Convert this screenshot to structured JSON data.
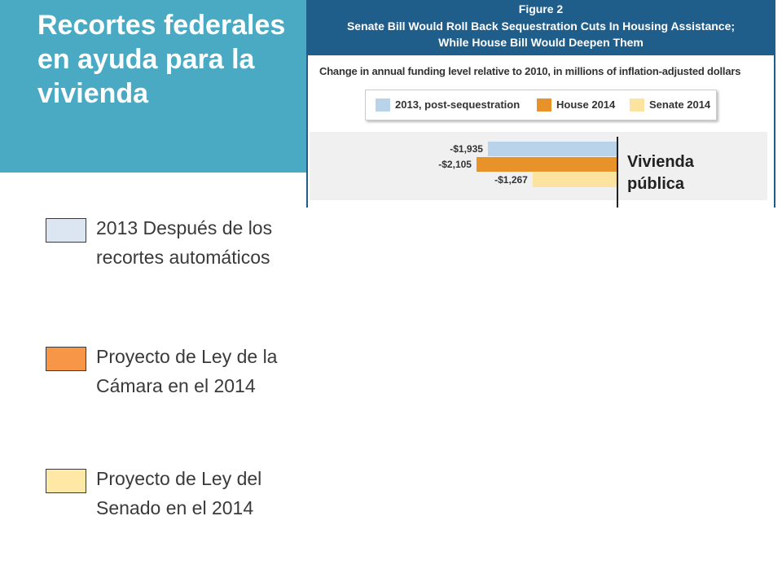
{
  "slide": {
    "title": "Recortes federales en ayuda para la vivienda",
    "legend": [
      {
        "label": "2013 Después de los recortes automáticos",
        "color": "#dce6f2"
      },
      {
        "label": "Proyecto de Ley de la Cámara en el 2014",
        "color": "#f79646"
      },
      {
        "label": "Proyecto de Ley del Senado en el 2014",
        "color": "#ffe8a6"
      }
    ]
  },
  "figure": {
    "number": "Figure 2",
    "title_line1": "Senate Bill Would Roll Back Sequestration Cuts In Housing Assistance;",
    "title_line2": "While House Bill Would Deepen Them",
    "subtitle": "Change in annual funding level relative to 2010, in millions of inflation-adjusted dollars",
    "legend": [
      {
        "label": "2013, post-sequestration",
        "color": "#b8d3ea"
      },
      {
        "label": "House 2014",
        "color": "#e8922a"
      },
      {
        "label": "Senate 2014",
        "color": "#fde3a0"
      }
    ]
  },
  "chart_data": {
    "type": "bar",
    "orientation": "horizontal",
    "categories": [
      "Vivienda pública"
    ],
    "series": [
      {
        "name": "2013, post-sequestration",
        "values": [
          -1935
        ],
        "labels": [
          "-$1,935"
        ],
        "color": "#b8d3ea"
      },
      {
        "name": "House 2014",
        "values": [
          -2105
        ],
        "labels": [
          "-$2,105"
        ],
        "color": "#e8922a"
      },
      {
        "name": "Senate 2014",
        "values": [
          -1267
        ],
        "labels": [
          "-$1,267"
        ],
        "color": "#fde3a0"
      }
    ]
  }
}
